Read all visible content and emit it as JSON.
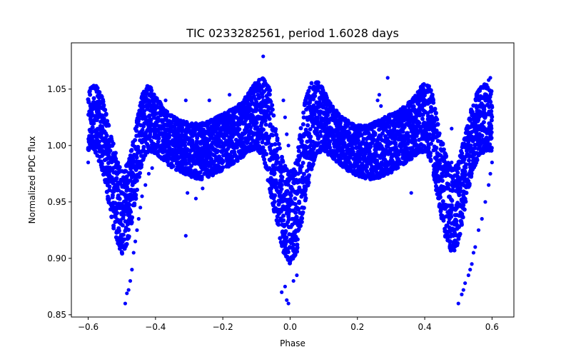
{
  "chart_data": {
    "type": "scatter",
    "title": "TIC 0233282561, period 1.6028 days",
    "xlabel": "Phase",
    "ylabel": "Normalized PDC flux",
    "xlim": [
      -0.65,
      0.665
    ],
    "ylim": [
      0.848,
      1.091
    ],
    "xticks": [
      -0.6,
      -0.4,
      -0.2,
      0.0,
      0.2,
      0.4,
      0.6
    ],
    "xtick_labels": [
      "−0.6",
      "−0.4",
      "−0.2",
      "0.0",
      "0.2",
      "0.4",
      "0.6"
    ],
    "yticks": [
      0.85,
      0.9,
      0.95,
      1.0,
      1.05
    ],
    "ytick_labels": [
      "0.85",
      "0.90",
      "0.95",
      "1.00",
      "1.05"
    ],
    "grid": false,
    "legend": "none",
    "series": [
      {
        "name": "Normalized PDC flux",
        "color": "#0000ff",
        "marker": "circle",
        "phase_range": [
          -0.6,
          0.6
        ],
        "envelope": {
          "x": [
            -0.6,
            -0.58,
            -0.56,
            -0.54,
            -0.52,
            -0.5,
            -0.48,
            -0.46,
            -0.44,
            -0.42,
            -0.4,
            -0.38,
            -0.36,
            -0.34,
            -0.32,
            -0.3,
            -0.28,
            -0.26,
            -0.24,
            -0.22,
            -0.2,
            -0.18,
            -0.16,
            -0.14,
            -0.12,
            -0.1,
            -0.08,
            -0.06,
            -0.04,
            -0.02,
            0.0,
            0.02,
            0.04,
            0.06,
            0.08,
            0.1,
            0.12,
            0.14,
            0.16,
            0.18,
            0.2,
            0.22,
            0.24,
            0.26,
            0.28,
            0.3,
            0.32,
            0.34,
            0.36,
            0.38,
            0.4,
            0.42,
            0.44,
            0.46,
            0.48,
            0.5,
            0.52,
            0.54,
            0.56,
            0.58,
            0.6
          ],
          "upper": [
            1.05,
            1.055,
            1.045,
            1.02,
            0.995,
            0.978,
            0.985,
            1.015,
            1.045,
            1.055,
            1.045,
            1.035,
            1.028,
            1.025,
            1.022,
            1.02,
            1.02,
            1.02,
            1.022,
            1.025,
            1.028,
            1.032,
            1.035,
            1.04,
            1.048,
            1.058,
            1.06,
            1.05,
            1.01,
            0.985,
            0.975,
            0.99,
            1.035,
            1.055,
            1.058,
            1.05,
            1.038,
            1.03,
            1.025,
            1.02,
            1.018,
            1.018,
            1.02,
            1.022,
            1.025,
            1.028,
            1.03,
            1.035,
            1.04,
            1.048,
            1.057,
            1.05,
            1.02,
            0.995,
            0.978,
            0.985,
            1.01,
            1.035,
            1.05,
            1.055,
            1.05
          ],
          "lower": [
            0.995,
            0.995,
            0.98,
            0.95,
            0.92,
            0.903,
            0.915,
            0.95,
            0.985,
            0.995,
            0.993,
            0.988,
            0.982,
            0.978,
            0.975,
            0.972,
            0.97,
            0.97,
            0.972,
            0.975,
            0.978,
            0.982,
            0.985,
            0.99,
            0.995,
            0.997,
            0.99,
            0.96,
            0.93,
            0.905,
            0.895,
            0.905,
            0.94,
            0.975,
            0.993,
            0.995,
            0.99,
            0.985,
            0.98,
            0.976,
            0.973,
            0.971,
            0.97,
            0.971,
            0.973,
            0.976,
            0.98,
            0.984,
            0.988,
            0.992,
            0.995,
            0.985,
            0.95,
            0.92,
            0.903,
            0.913,
            0.945,
            0.975,
            0.99,
            0.995,
            0.995
          ]
        },
        "outliers": [
          [
            -0.49,
            0.86
          ],
          [
            -0.485,
            0.869
          ],
          [
            -0.48,
            0.872
          ],
          [
            -0.475,
            0.88
          ],
          [
            -0.47,
            0.89
          ],
          [
            -0.465,
            0.905
          ],
          [
            -0.46,
            0.915
          ],
          [
            -0.455,
            0.925
          ],
          [
            -0.45,
            0.935
          ],
          [
            -0.445,
            0.945
          ],
          [
            -0.44,
            0.955
          ],
          [
            -0.43,
            0.965
          ],
          [
            -0.42,
            0.975
          ],
          [
            -0.41,
            0.98
          ],
          [
            -0.53,
            0.985
          ],
          [
            -0.6,
            0.985
          ],
          [
            -0.31,
            0.92
          ],
          [
            -0.305,
            0.958
          ],
          [
            -0.28,
            0.953
          ],
          [
            -0.26,
            0.962
          ],
          [
            -0.365,
            1.03
          ],
          [
            -0.37,
            1.04
          ],
          [
            -0.31,
            1.04
          ],
          [
            -0.24,
            1.04
          ],
          [
            -0.18,
            1.045
          ],
          [
            -0.14,
            1.035
          ],
          [
            -0.17,
            1.01
          ],
          [
            -0.08,
            1.079
          ],
          [
            -0.02,
            1.04
          ],
          [
            -0.015,
            1.025
          ],
          [
            -0.01,
            1.01
          ],
          [
            -0.005,
            1.0
          ],
          [
            -0.025,
            0.87
          ],
          [
            -0.015,
            0.875
          ],
          [
            -0.01,
            0.863
          ],
          [
            -0.005,
            0.86
          ],
          [
            0.01,
            0.88
          ],
          [
            0.02,
            0.885
          ],
          [
            0.0,
            0.97
          ],
          [
            0.005,
            0.96
          ],
          [
            0.265,
            1.045
          ],
          [
            0.26,
            1.04
          ],
          [
            0.27,
            1.035
          ],
          [
            0.29,
            1.06
          ],
          [
            0.36,
            0.958
          ],
          [
            0.5,
            0.86
          ],
          [
            0.51,
            0.868
          ],
          [
            0.515,
            0.872
          ],
          [
            0.52,
            0.878
          ],
          [
            0.53,
            0.885
          ],
          [
            0.535,
            0.89
          ],
          [
            0.54,
            0.895
          ],
          [
            0.545,
            0.905
          ],
          [
            0.55,
            0.91
          ],
          [
            0.56,
            0.925
          ],
          [
            0.57,
            0.935
          ],
          [
            0.58,
            0.95
          ],
          [
            0.59,
            0.965
          ],
          [
            0.595,
            0.975
          ],
          [
            0.48,
            0.985
          ],
          [
            0.6,
            0.985
          ],
          [
            0.48,
            1.015
          ],
          [
            0.595,
            1.06
          ],
          [
            0.59,
            1.058
          ]
        ]
      }
    ]
  }
}
